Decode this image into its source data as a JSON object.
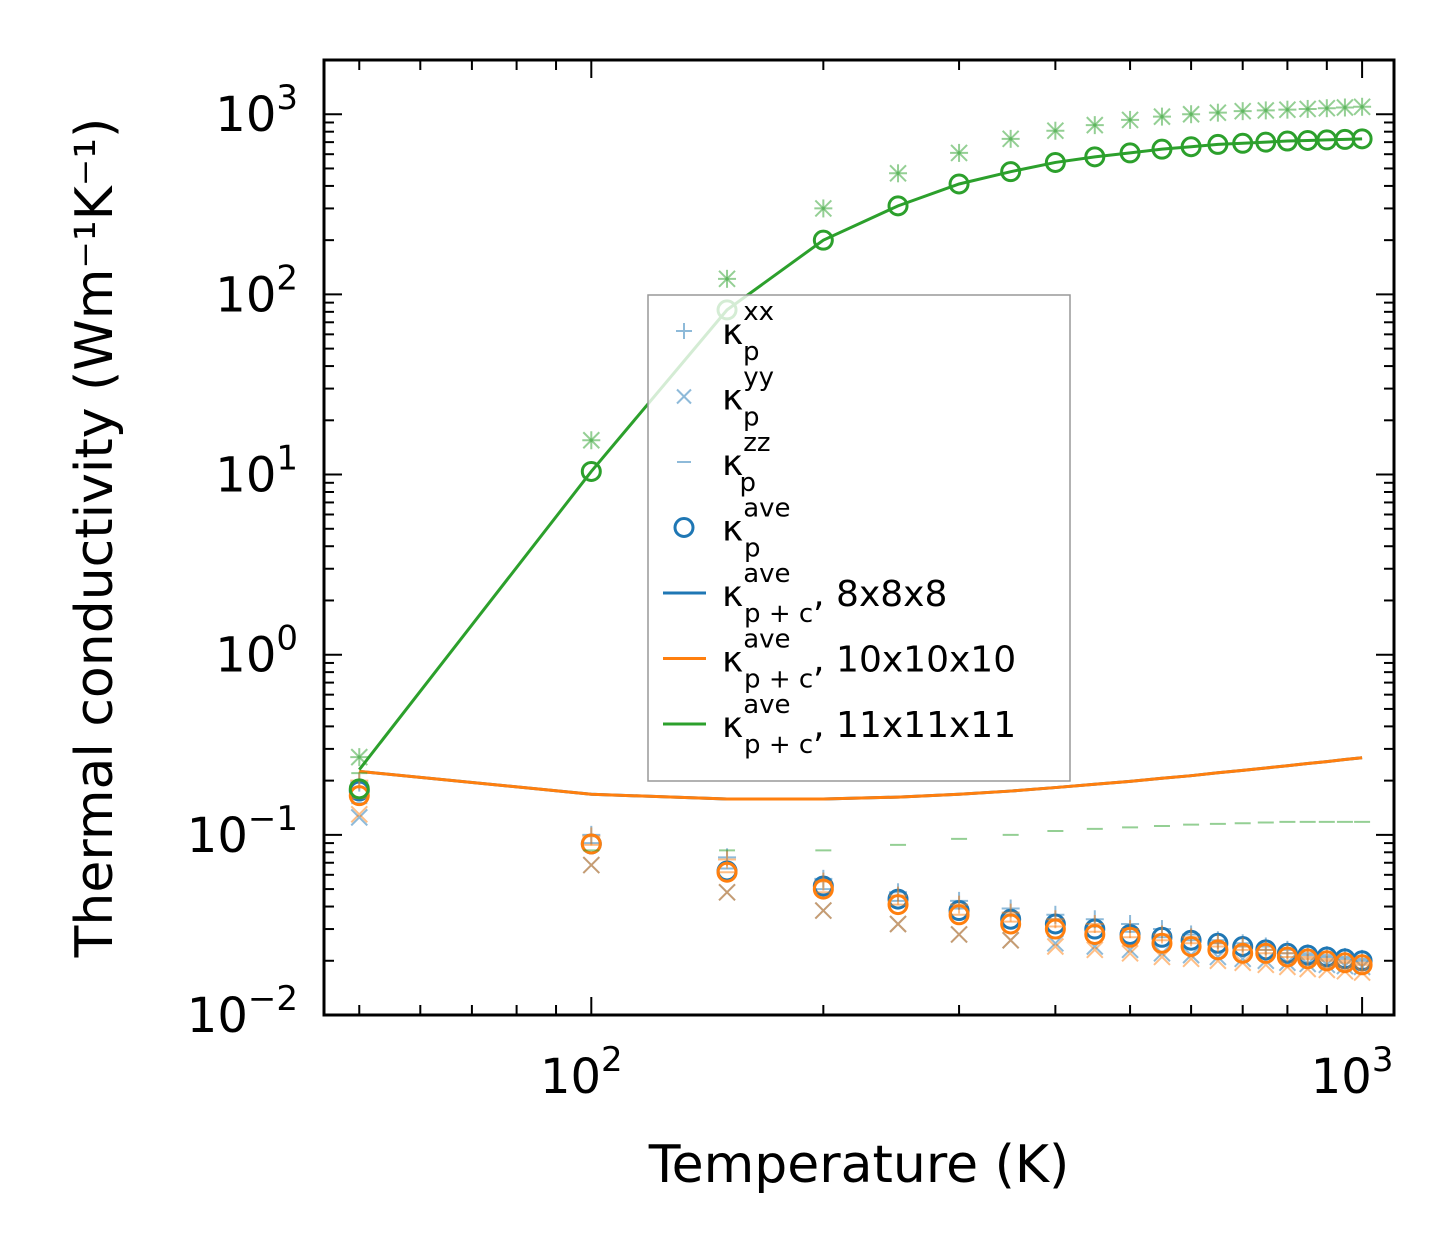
{
  "chart_data": {
    "type": "scatter",
    "xscale": "log",
    "yscale": "log",
    "xlim": [
      45,
      1100
    ],
    "ylim": [
      0.01,
      2000
    ],
    "xlabel": "Temperature (K)",
    "ylabel": "Thermal conductivity (Wm⁻¹K⁻¹)",
    "x_ticks": [
      {
        "value": 100,
        "base": "10",
        "exp": "2"
      },
      {
        "value": 1000,
        "base": "10",
        "exp": "3"
      }
    ],
    "y_ticks": [
      {
        "value": 0.01,
        "base": "10",
        "exp": "−2"
      },
      {
        "value": 0.1,
        "base": "10",
        "exp": "−1"
      },
      {
        "value": 1,
        "base": "10",
        "exp": "0"
      },
      {
        "value": 10,
        "base": "10",
        "exp": "1"
      },
      {
        "value": 100,
        "base": "10",
        "exp": "2"
      },
      {
        "value": 1000,
        "base": "10",
        "exp": "3"
      }
    ],
    "temperatures": [
      50,
      100,
      150,
      200,
      250,
      300,
      350,
      400,
      450,
      500,
      550,
      600,
      650,
      700,
      750,
      800,
      850,
      900,
      950,
      1000
    ],
    "legend": {
      "placement": "center",
      "entries": [
        {
          "marker": "plus",
          "color": "#1f77b4",
          "alpha": 0.5,
          "label_main": "κ",
          "label_sub": "p",
          "label_sup": "xx",
          "label_tail": ""
        },
        {
          "marker": "x",
          "color": "#1f77b4",
          "alpha": 0.5,
          "label_main": "κ",
          "label_sub": "p",
          "label_sup": "yy",
          "label_tail": ""
        },
        {
          "marker": "dash",
          "color": "#1f77b4",
          "alpha": 0.5,
          "label_main": "κ",
          "label_sub": "p",
          "label_sup": "zz",
          "label_tail": ""
        },
        {
          "marker": "circle",
          "color": "#1f77b4",
          "alpha": 1,
          "label_main": "κ",
          "label_sub": "p",
          "label_sup": "ave",
          "label_tail": ""
        },
        {
          "marker": "line",
          "color": "#1f77b4",
          "alpha": 1,
          "label_main": "κ",
          "label_sub": "p + c",
          "label_sup": "ave",
          "label_tail": ", 8x8x8"
        },
        {
          "marker": "line",
          "color": "#ff7f0e",
          "alpha": 1,
          "label_main": "κ",
          "label_sub": "p + c",
          "label_sup": "ave",
          "label_tail": ", 10x10x10"
        },
        {
          "marker": "line",
          "color": "#2ca02c",
          "alpha": 1,
          "label_main": "κ",
          "label_sub": "p + c",
          "label_sup": "ave",
          "label_tail": ", 11x11x11"
        }
      ]
    },
    "series": [
      {
        "name": "8x8x8",
        "color": "#1f77b4",
        "kappa_p_xx": [
          0.195,
          0.1,
          0.075,
          0.057,
          0.048,
          0.043,
          0.039,
          0.036,
          0.034,
          0.032,
          0.03,
          0.028,
          0.026,
          0.025,
          0.024,
          0.023,
          0.022,
          0.0215,
          0.021,
          0.0205
        ],
        "kappa_p_yy": [
          0.125,
          0.068,
          0.048,
          0.038,
          0.032,
          0.028,
          0.026,
          0.025,
          0.024,
          0.023,
          0.022,
          0.0215,
          0.021,
          0.0205,
          0.02,
          0.0195,
          0.0192,
          0.019,
          0.0187,
          0.0185
        ],
        "kappa_p_zz": [
          0.15,
          0.09,
          0.065,
          0.05,
          0.043,
          0.039,
          0.036,
          0.034,
          0.031,
          0.029,
          0.027,
          0.026,
          0.025,
          0.024,
          0.023,
          0.022,
          0.0215,
          0.021,
          0.0205,
          0.02
        ],
        "kappa_p_ave": [
          0.175,
          0.089,
          0.063,
          0.052,
          0.044,
          0.038,
          0.034,
          0.032,
          0.03,
          0.028,
          0.027,
          0.026,
          0.025,
          0.024,
          0.023,
          0.022,
          0.0215,
          0.021,
          0.0205,
          0.02
        ],
        "kappa_pc_ave": [
          0.225,
          0.168,
          0.158,
          0.158,
          0.162,
          0.168,
          0.175,
          0.183,
          0.191,
          0.198,
          0.206,
          0.213,
          0.221,
          0.228,
          0.235,
          0.242,
          0.249,
          0.255,
          0.262,
          0.268
        ]
      },
      {
        "name": "10x10x10",
        "color": "#ff7f0e",
        "kappa_p_xx": [
          0.2,
          0.098,
          0.073,
          0.055,
          0.046,
          0.041,
          0.037,
          0.034,
          0.032,
          0.03,
          0.028,
          0.027,
          0.025,
          0.024,
          0.023,
          0.022,
          0.021,
          0.0205,
          0.02,
          0.0195
        ],
        "kappa_p_yy": [
          0.13,
          0.068,
          0.048,
          0.038,
          0.032,
          0.028,
          0.026,
          0.024,
          0.023,
          0.022,
          0.021,
          0.0205,
          0.02,
          0.0195,
          0.019,
          0.0185,
          0.018,
          0.0178,
          0.0175,
          0.0172
        ],
        "kappa_p_zz": [
          0.16,
          0.088,
          0.062,
          0.048,
          0.041,
          0.036,
          0.033,
          0.031,
          0.029,
          0.027,
          0.026,
          0.025,
          0.024,
          0.023,
          0.022,
          0.021,
          0.0205,
          0.02,
          0.0195,
          0.019
        ],
        "kappa_p_ave": [
          0.165,
          0.089,
          0.062,
          0.05,
          0.041,
          0.036,
          0.032,
          0.03,
          0.028,
          0.027,
          0.025,
          0.024,
          0.023,
          0.022,
          0.022,
          0.021,
          0.0205,
          0.02,
          0.0195,
          0.019
        ],
        "kappa_pc_ave": [
          0.225,
          0.168,
          0.158,
          0.158,
          0.162,
          0.168,
          0.175,
          0.183,
          0.191,
          0.198,
          0.206,
          0.213,
          0.221,
          0.228,
          0.235,
          0.242,
          0.249,
          0.255,
          0.262,
          0.268
        ]
      },
      {
        "name": "11x11x11",
        "color": "#2ca02c",
        "kappa_p_xx": [
          0.27,
          15.5,
          122,
          300,
          470,
          610,
          730,
          810,
          870,
          930,
          970,
          1000,
          1020,
          1040,
          1050,
          1060,
          1070,
          1080,
          1090,
          1100
        ],
        "kappa_p_yy": [
          0.27,
          15.5,
          122,
          300,
          470,
          610,
          730,
          810,
          870,
          930,
          970,
          1000,
          1020,
          1040,
          1050,
          1060,
          1070,
          1080,
          1090,
          1100
        ],
        "kappa_p_zz": [
          0.22,
          0.082,
          0.082,
          0.082,
          0.088,
          0.095,
          0.1,
          0.105,
          0.108,
          0.11,
          0.112,
          0.114,
          0.115,
          0.116,
          0.117,
          0.118,
          0.118,
          0.118,
          0.118,
          0.118
        ],
        "kappa_p_ave": [
          0.18,
          10.4,
          82,
          200,
          310,
          410,
          480,
          540,
          580,
          610,
          640,
          660,
          680,
          690,
          700,
          710,
          715,
          720,
          725,
          730
        ],
        "kappa_pc_ave": [
          0.23,
          10.4,
          82,
          200,
          310,
          410,
          480,
          540,
          580,
          610,
          640,
          660,
          680,
          690,
          700,
          710,
          715,
          720,
          725,
          730
        ]
      }
    ]
  }
}
